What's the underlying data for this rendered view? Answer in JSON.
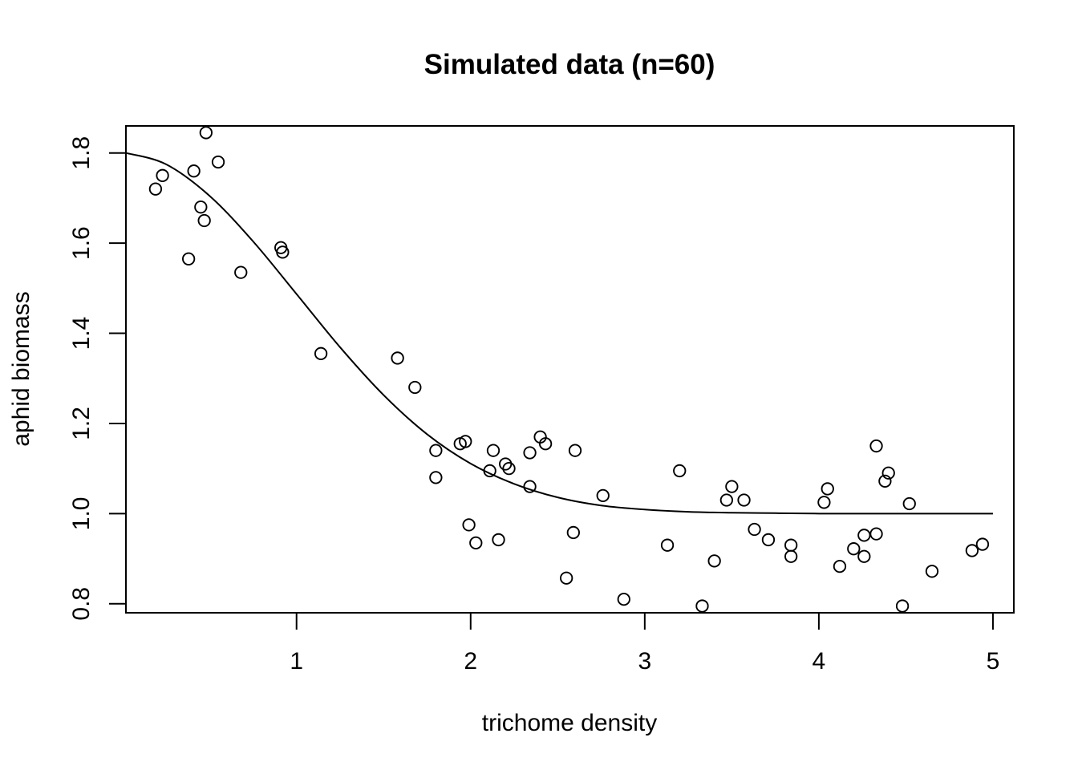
{
  "chart_data": {
    "type": "scatter",
    "title": "Simulated data (n=60)",
    "xlabel": "trichome density",
    "ylabel": "aphid biomass",
    "xlim": [
      0.02,
      5.12
    ],
    "ylim": [
      0.78,
      1.86
    ],
    "xticks": [
      1,
      2,
      3,
      4,
      5
    ],
    "xtick_labels": [
      "1",
      "2",
      "3",
      "4",
      "5"
    ],
    "yticks": [
      0.8,
      1.0,
      1.2,
      1.4,
      1.6,
      1.8
    ],
    "ytick_labels": [
      "0.8",
      "1.0",
      "1.2",
      "1.4",
      "1.6",
      "1.8"
    ],
    "grid": false,
    "legend": "none",
    "series": [
      {
        "kind": "points",
        "marker": "open-circle",
        "x": [
          0.19,
          0.23,
          0.38,
          0.41,
          0.45,
          0.47,
          0.48,
          0.55,
          0.68,
          0.91,
          0.92,
          1.14,
          1.58,
          1.68,
          1.8,
          1.8,
          1.94,
          1.97,
          1.99,
          2.03,
          2.11,
          2.13,
          2.16,
          2.2,
          2.22,
          2.34,
          2.34,
          2.4,
          2.43,
          2.55,
          2.59,
          2.6,
          2.76,
          2.88,
          3.13,
          3.2,
          3.33,
          3.4,
          3.47,
          3.5,
          3.57,
          3.63,
          3.71,
          3.84,
          3.84,
          4.03,
          4.05,
          4.12,
          4.2,
          4.26,
          4.26,
          4.33,
          4.33,
          4.38,
          4.4,
          4.48,
          4.52,
          4.65,
          4.88,
          4.94
        ],
        "y": [
          1.72,
          1.75,
          1.565,
          1.76,
          1.68,
          1.65,
          1.845,
          1.78,
          1.535,
          1.59,
          1.58,
          1.355,
          1.345,
          1.28,
          1.14,
          1.08,
          1.155,
          1.16,
          0.975,
          0.935,
          1.095,
          1.14,
          0.942,
          1.11,
          1.1,
          1.135,
          1.06,
          1.17,
          1.155,
          0.857,
          0.958,
          1.14,
          1.04,
          0.81,
          0.93,
          1.095,
          0.795,
          0.895,
          1.03,
          1.06,
          1.03,
          0.965,
          0.942,
          0.905,
          0.93,
          1.025,
          1.055,
          0.883,
          0.922,
          0.905,
          0.952,
          1.15,
          0.955,
          1.072,
          1.09,
          0.795,
          1.022,
          0.872,
          0.918,
          0.932
        ]
      },
      {
        "kind": "line",
        "x": [
          0.02,
          0.25,
          0.5,
          0.75,
          1.0,
          1.25,
          1.5,
          1.75,
          2.0,
          2.25,
          2.5,
          2.75,
          3.0,
          3.25,
          3.5,
          3.75,
          4.0,
          4.25,
          4.5,
          4.75,
          5.0
        ],
        "y": [
          1.8,
          1.775,
          1.705,
          1.604,
          1.487,
          1.369,
          1.263,
          1.176,
          1.111,
          1.066,
          1.036,
          1.018,
          1.009,
          1.004,
          1.002,
          1.001,
          1.0,
          1.0,
          1.0,
          1.0,
          1.0
        ]
      }
    ]
  }
}
